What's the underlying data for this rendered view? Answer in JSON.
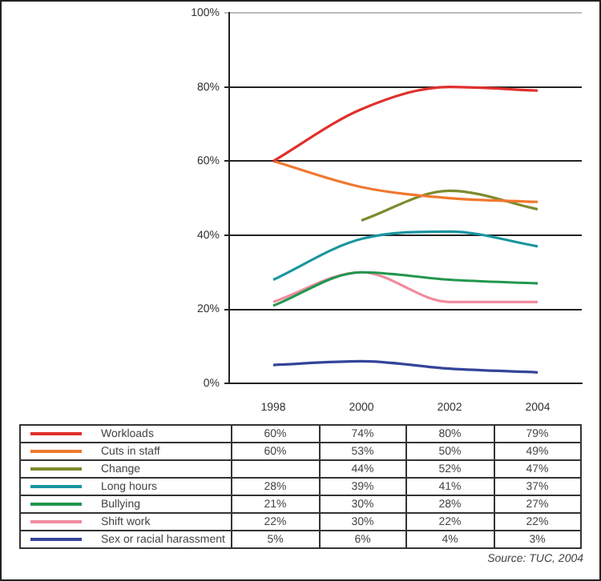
{
  "chart_data": {
    "type": "line",
    "categories": [
      "1998",
      "2000",
      "2002",
      "2004"
    ],
    "series": [
      {
        "name": "Workloads",
        "color": "#e0302c",
        "values": [
          60,
          74,
          80,
          79
        ],
        "value_labels": [
          "60%",
          "74%",
          "80%",
          "79%"
        ]
      },
      {
        "name": "Cuts in staff",
        "color": "#f0782e",
        "values": [
          60,
          53,
          50,
          49
        ],
        "value_labels": [
          "60%",
          "53%",
          "50%",
          "49%"
        ]
      },
      {
        "name": "Change",
        "color": "#7f8a2e",
        "values": [
          null,
          44,
          52,
          47
        ],
        "value_labels": [
          null,
          "44%",
          "52%",
          "47%"
        ]
      },
      {
        "name": "Long hours",
        "color": "#1a95a0",
        "values": [
          28,
          39,
          41,
          37
        ],
        "value_labels": [
          "28%",
          "39%",
          "41%",
          "37%"
        ]
      },
      {
        "name": "Bullying",
        "color": "#23964e",
        "values": [
          21,
          30,
          28,
          27
        ],
        "value_labels": [
          "21%",
          "30%",
          "28%",
          "27%"
        ]
      },
      {
        "name": "Shift work",
        "color": "#f08ca0",
        "values": [
          22,
          30,
          22,
          22
        ],
        "value_labels": [
          "22%",
          "30%",
          "22%",
          "22%"
        ]
      },
      {
        "name": "Sex or racial harassment",
        "color": "#34449a",
        "values": [
          5,
          6,
          4,
          3
        ],
        "value_labels": [
          "5%",
          "6%",
          "4%",
          "3%"
        ]
      }
    ],
    "ylim": [
      0,
      100
    ],
    "yticks": [
      {
        "value": 0,
        "label": "0%"
      },
      {
        "value": 20,
        "label": "20%"
      },
      {
        "value": 40,
        "label": "40%"
      },
      {
        "value": 60,
        "label": "60%"
      },
      {
        "value": 80,
        "label": "80%"
      },
      {
        "value": 100,
        "label": "100%"
      }
    ],
    "grid": "y",
    "legend": "bottom",
    "marker": "none",
    "line_style": "solid",
    "annotations": [
      "Source: TUC, 2004"
    ]
  }
}
